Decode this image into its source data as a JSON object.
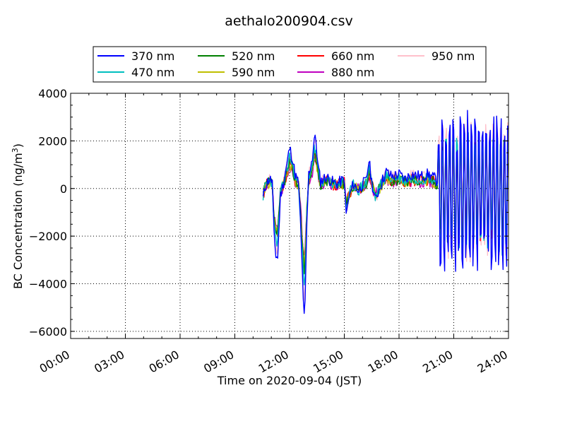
{
  "chart_data": {
    "type": "line",
    "title": "aethalo200904.csv",
    "xlabel": "Time on 2020-09-04 (JST)",
    "ylabel_main": "BC Concentration (ng/m",
    "ylabel_sup": "3",
    "ylabel_tail": ")",
    "xlim_hours": [
      0,
      24
    ],
    "ylim": [
      -6300,
      4000
    ],
    "x_ticks": [
      {
        "hour": 0,
        "label": "00:00"
      },
      {
        "hour": 3,
        "label": "03:00"
      },
      {
        "hour": 6,
        "label": "06:00"
      },
      {
        "hour": 9,
        "label": "09:00"
      },
      {
        "hour": 12,
        "label": "12:00"
      },
      {
        "hour": 15,
        "label": "15:00"
      },
      {
        "hour": 18,
        "label": "18:00"
      },
      {
        "hour": 21,
        "label": "21:00"
      },
      {
        "hour": 24,
        "label": "24:00"
      }
    ],
    "y_ticks": [
      {
        "value": 4000,
        "label": "4000"
      },
      {
        "value": 2000,
        "label": "2000"
      },
      {
        "value": 0,
        "label": "0"
      },
      {
        "value": -2000,
        "label": "−2000"
      },
      {
        "value": -4000,
        "label": "−4000"
      },
      {
        "value": -6000,
        "label": "−6000"
      }
    ],
    "grid": true,
    "legend_position": "top-center",
    "series": [
      {
        "name": "370 nm",
        "color": "#0000ff",
        "amp": 1.0,
        "seed": 11
      },
      {
        "name": "470 nm",
        "color": "#00bfbf",
        "amp": 0.78,
        "seed": 23
      },
      {
        "name": "520 nm",
        "color": "#008000",
        "amp": 0.65,
        "seed": 37
      },
      {
        "name": "590 nm",
        "color": "#bfbf00",
        "amp": 0.6,
        "seed": 41
      },
      {
        "name": "660 nm",
        "color": "#ff0000",
        "amp": 0.62,
        "seed": 53
      },
      {
        "name": "880 nm",
        "color": "#bf00bf",
        "amp": 0.55,
        "seed": 67
      },
      {
        "name": "950 nm",
        "color": "#ffc0cb",
        "amp": 0.9,
        "seed": 79
      }
    ]
  }
}
